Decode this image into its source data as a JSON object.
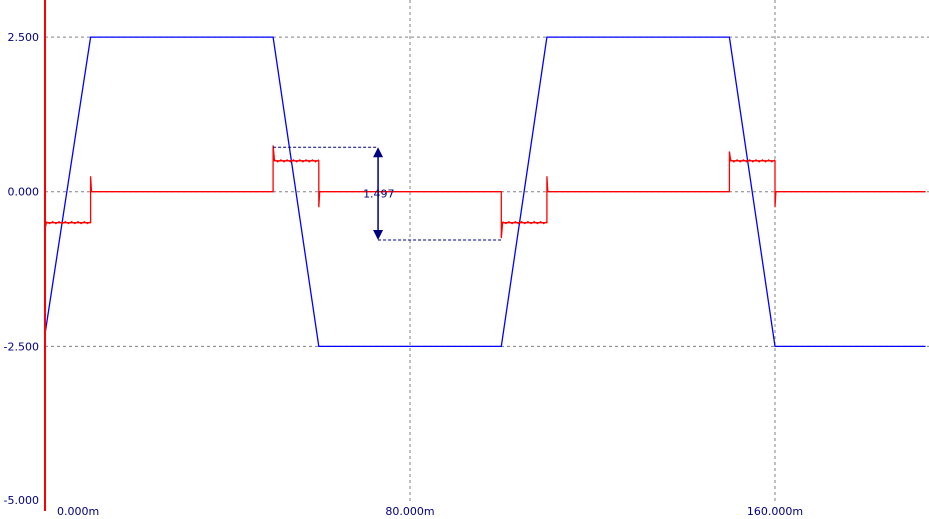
{
  "chart_data": {
    "type": "line",
    "xlim": [
      -12,
      193
    ],
    "ylim": [
      -5.0,
      3.1
    ],
    "x_ticks": [
      {
        "value": 0,
        "label": "0.000m"
      },
      {
        "value": 80,
        "label": "80.000m"
      },
      {
        "value": 160,
        "label": "160.000m"
      }
    ],
    "y_ticks": [
      {
        "value": 2.5,
        "label": "2.500"
      },
      {
        "value": 0,
        "label": "0.000"
      },
      {
        "value": -2.5,
        "label": "-2.500"
      },
      {
        "value": -5.0,
        "label": "-5.000"
      }
    ],
    "grid": true,
    "series": [
      {
        "color": "#0000ff",
        "points": [
          [
            0,
            -2.3
          ],
          [
            10,
            2.5
          ],
          [
            50,
            2.5
          ],
          [
            60,
            -2.5
          ],
          [
            100,
            -2.5
          ],
          [
            110,
            2.5
          ],
          [
            150,
            2.5
          ],
          [
            160,
            -2.5
          ],
          [
            193,
            -2.5
          ]
        ]
      },
      {
        "color": "#ff0000",
        "points": [
          [
            0,
            -0.6
          ],
          [
            0.3,
            -0.5
          ],
          [
            10,
            -0.5
          ],
          [
            10,
            0.25
          ],
          [
            10.2,
            0
          ],
          [
            50,
            0
          ],
          [
            50,
            0.75
          ],
          [
            50.3,
            0.5
          ],
          [
            60,
            0.5
          ],
          [
            60,
            -0.25
          ],
          [
            60.2,
            0
          ],
          [
            100,
            0
          ],
          [
            100,
            -0.75
          ],
          [
            100.3,
            -0.5
          ],
          [
            110,
            -0.5
          ],
          [
            110,
            0.25
          ],
          [
            110.2,
            0
          ],
          [
            150,
            0
          ],
          [
            150,
            0.65
          ],
          [
            150.3,
            0.5
          ],
          [
            160,
            0.5
          ],
          [
            160,
            -0.25
          ],
          [
            160.2,
            0
          ],
          [
            193,
            0
          ]
        ]
      }
    ],
    "measurement": {
      "label": "1.497",
      "x": 73,
      "y_top": 0.72,
      "y_bottom": -0.78,
      "x_from_top": 50,
      "x_from_bottom": 100
    },
    "colors": {
      "grid": "#808080",
      "axis": "#ff0000",
      "tick_label": "#000080",
      "measure": "#000080"
    }
  }
}
